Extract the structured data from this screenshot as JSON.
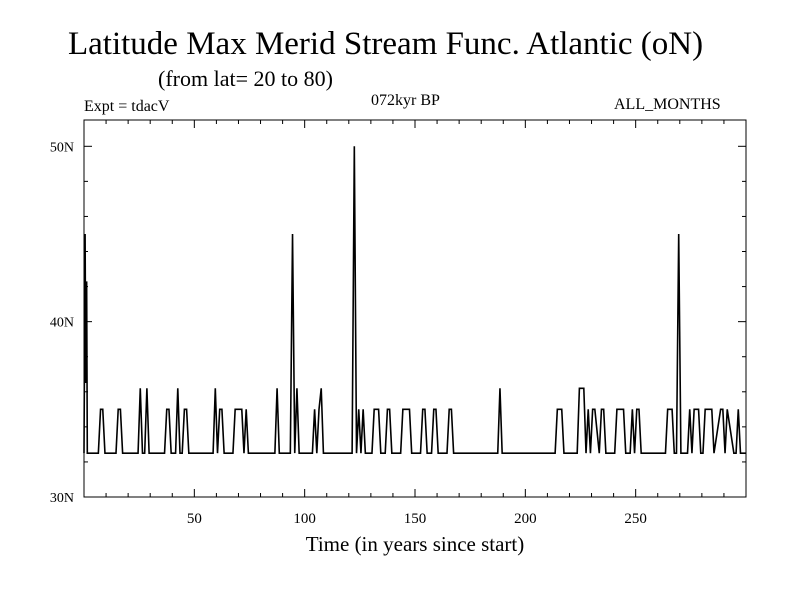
{
  "header": {
    "title": "Latitude Max Merid Stream Func. Atlantic (oN)",
    "subtitle": "(from lat= 20 to 80)",
    "expt": "Expt = tdacV",
    "period": "072kyr BP",
    "months": "ALL_MONTHS"
  },
  "chart_data": {
    "type": "line",
    "title": "Latitude Max Merid Stream Func. Atlantic (oN)",
    "subtitle": "(from lat= 20 to 80)",
    "xlabel": "Time (in years since start)",
    "ylabel": "",
    "xlim": [
      0,
      300
    ],
    "ylim": [
      30,
      51.5
    ],
    "x_ticks": [
      50,
      100,
      150,
      200,
      250
    ],
    "x_tick_labels": [
      "50",
      "100",
      "150",
      "200",
      "250"
    ],
    "y_ticks": [
      30,
      40,
      50
    ],
    "y_tick_labels": [
      "30N",
      "40N",
      "50N"
    ],
    "grid": false,
    "line_color": "#000000",
    "series": [
      {
        "name": "",
        "x": [
          0,
          0.5,
          0.8,
          1.2,
          1.5,
          6.5,
          7.5,
          8.5,
          9.5,
          14.5,
          15.5,
          16.5,
          17.5,
          24.5,
          25.5,
          26.5,
          27.5,
          28.5,
          29.5,
          36.5,
          37.5,
          38.5,
          39.5,
          41.5,
          42.5,
          43.5,
          44.5,
          45.5,
          46.5,
          47.5,
          48.5,
          58.5,
          59.5,
          60.5,
          61.5,
          62.5,
          63.5,
          67.5,
          68.5,
          71.5,
          72.5,
          73.5,
          74.5,
          86.5,
          87.5,
          88.5,
          89.5,
          93.5,
          94.5,
          95.5,
          96.5,
          97.5,
          98.5,
          103.5,
          104.5,
          105.5,
          106.5,
          107.5,
          108.5,
          120.5,
          121.5,
          122.5,
          123.5,
          124.5,
          125.5,
          126.5,
          127.5,
          130.5,
          131.5,
          133.5,
          134.5,
          136.5,
          137.5,
          138.5,
          139.5,
          143.5,
          144.5,
          147.5,
          148.5,
          152.5,
          153.5,
          154.5,
          155.5,
          157.5,
          158.5,
          159.5,
          160.5,
          164.5,
          165.5,
          166.5,
          167.5,
          187.5,
          188.5,
          189.5,
          190.5,
          213.5,
          214.5,
          216.5,
          217.5,
          223.5,
          224.5,
          226.5,
          227.5,
          228.5,
          229.5,
          230.5,
          231.5,
          233.5,
          234.5,
          235.5,
          236.5,
          240.5,
          241.5,
          244.5,
          245.5,
          247.5,
          248.5,
          249.5,
          250.5,
          251.5,
          252.5,
          263.5,
          264.5,
          266.5,
          267.5,
          268.5,
          269.5,
          270.5,
          271.5,
          273.5,
          274.5,
          275.5,
          276.5,
          278.5,
          279.5,
          280.5,
          281.5,
          284.5,
          285.5,
          288.5,
          289.5,
          290.5,
          291.5,
          294.5,
          295.5,
          296.5,
          297.5,
          300
        ],
        "y": [
          32.5,
          45,
          36.5,
          42.3,
          32.5,
          32.5,
          35,
          35,
          32.5,
          32.5,
          35,
          35,
          32.5,
          32.5,
          36.2,
          32.5,
          32.5,
          36.2,
          32.5,
          32.5,
          35,
          35,
          32.5,
          32.5,
          36.2,
          32.5,
          32.5,
          35,
          35,
          32.5,
          32.5,
          32.5,
          36.2,
          32.5,
          35,
          35,
          32.5,
          32.5,
          35,
          35,
          32.5,
          35,
          32.5,
          32.5,
          36.2,
          32.5,
          32.5,
          32.5,
          45,
          32.5,
          36.2,
          32.5,
          32.5,
          32.5,
          35,
          32.5,
          35,
          36.2,
          32.5,
          32.5,
          32.5,
          50,
          32.5,
          35,
          32.5,
          35,
          32.5,
          32.5,
          35,
          35,
          32.5,
          32.5,
          35,
          35,
          32.5,
          32.5,
          35,
          35,
          32.5,
          32.5,
          35,
          35,
          32.5,
          32.5,
          35,
          35,
          32.5,
          32.5,
          35,
          35,
          32.5,
          32.5,
          36.2,
          32.5,
          32.5,
          32.5,
          35,
          35,
          32.5,
          32.5,
          36.2,
          36.2,
          32.5,
          35,
          32.5,
          35,
          35,
          32.5,
          35,
          35,
          32.5,
          32.5,
          35,
          35,
          32.5,
          32.5,
          35,
          32.5,
          35,
          35,
          32.5,
          32.5,
          35,
          35,
          32.5,
          32.5,
          45,
          32.5,
          32.5,
          32.5,
          35,
          32.5,
          35,
          35,
          32.5,
          32.5,
          35,
          35,
          32.5,
          35,
          35,
          32.5,
          35,
          32.5,
          32.5,
          35,
          32.5,
          32.5
        ]
      }
    ]
  }
}
